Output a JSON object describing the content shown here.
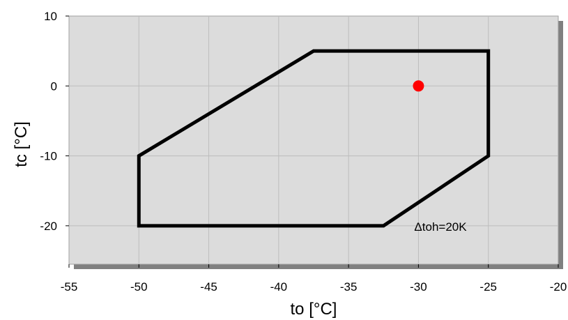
{
  "chart_data": {
    "type": "line",
    "xlabel": "to [°C]",
    "ylabel": "tc [°C]",
    "xlim": [
      -55,
      -20
    ],
    "ylim": [
      -25.5,
      10
    ],
    "x_ticks": [
      -55,
      -50,
      -45,
      -40,
      -35,
      -30,
      -25,
      -20
    ],
    "y_ticks": [
      10,
      0,
      -10,
      -20
    ],
    "grid": true,
    "series": [
      {
        "type": "polygon",
        "color": "#000000",
        "points": [
          {
            "x": -50,
            "y": -10
          },
          {
            "x": -37.5,
            "y": 5
          },
          {
            "x": -25,
            "y": 5
          },
          {
            "x": -25,
            "y": -10
          },
          {
            "x": -32.5,
            "y": -20
          },
          {
            "x": -50,
            "y": -20
          }
        ]
      },
      {
        "type": "scatter",
        "color": "#ff0000",
        "points": [
          {
            "x": -30,
            "y": 0
          }
        ]
      }
    ],
    "annotations": [
      {
        "text": "Δtoh=20K",
        "x": -30.3,
        "y": -20.7
      }
    ]
  }
}
